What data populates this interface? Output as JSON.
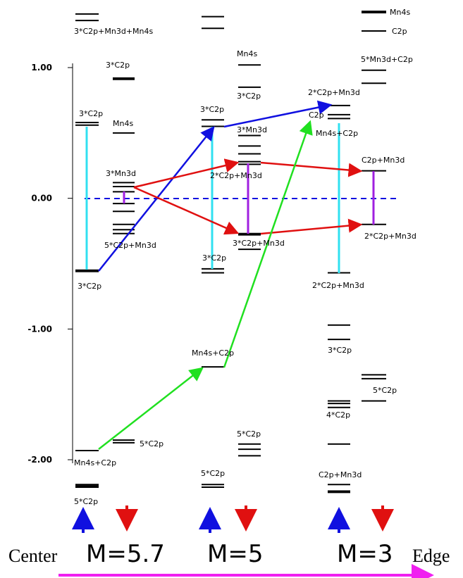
{
  "axis": {
    "ticks": [
      {
        "value": 1,
        "label": "1.00"
      },
      {
        "value": 0,
        "label": "0.00"
      },
      {
        "value": -1,
        "label": "-1.00"
      },
      {
        "value": -2,
        "label": "-2.00"
      }
    ]
  },
  "columns": [
    {
      "levels": [
        1.41,
        1.36,
        0.58,
        0.56,
        -0.55,
        -0.56,
        -1.93,
        -2.19,
        -2.2,
        -2.21
      ]
    },
    {
      "levels": [
        0.92,
        0.91,
        0.5,
        0.12,
        0.09,
        0.05,
        -0.04,
        -0.1,
        -0.2,
        -0.24,
        -0.27,
        -1.85,
        -1.87
      ]
    },
    {
      "levels": [
        1.39,
        1.3,
        0.6,
        0.55,
        -0.54,
        -0.57,
        -1.29,
        -2.19,
        -2.21
      ]
    },
    {
      "levels": [
        1.02,
        0.85,
        0.48,
        0.4,
        0.34,
        0.28,
        0.26,
        -0.27,
        -0.28,
        -0.39,
        -1.88,
        -1.92,
        -1.97
      ]
    },
    {
      "levels": [
        0.71,
        0.64,
        0.61,
        -0.57,
        -0.97,
        -1.08,
        -1.55,
        -1.57,
        -1.6,
        -1.88,
        -2.19,
        -2.24,
        -2.25
      ]
    },
    {
      "levels": [
        1.43,
        1.42,
        1.28,
        0.98,
        0.88,
        0.21,
        -0.2,
        -1.35,
        -1.38,
        -1.55
      ]
    }
  ],
  "labels": [
    "3*C2p+Mn3d+Mn4s",
    "3*C2p",
    "3*C2p",
    "Mn4s",
    "3*Mn3d",
    "5*C2p+Mn3d",
    "3*C2p",
    "Mn4s+C2p",
    "5*C2p",
    "5*C2p",
    "3*C2p",
    "Mn4s",
    "3*C2p",
    "3*Mn3d",
    "2*C2p+Mn3d",
    "3*C2p+Mn3d",
    "3*C2p",
    "Mn4s+C2p",
    "5*C2p",
    "5*C2p",
    "2*C2p+Mn3d",
    "C2p",
    "Mn4s+C2p",
    "2*C2p+Mn3d",
    "3*C2p",
    "4*C2p",
    "C2p+Mn3d",
    "Mn4s",
    "C2p",
    "5*Mn3d+C2p",
    "C2p+Mn3d",
    "2*C2p+Mn3d",
    "5*C2p"
  ],
  "footer": {
    "left": "Center",
    "m1": "M=5.7",
    "m2": "M=5",
    "m3": "M=3",
    "right": "Edge"
  }
}
